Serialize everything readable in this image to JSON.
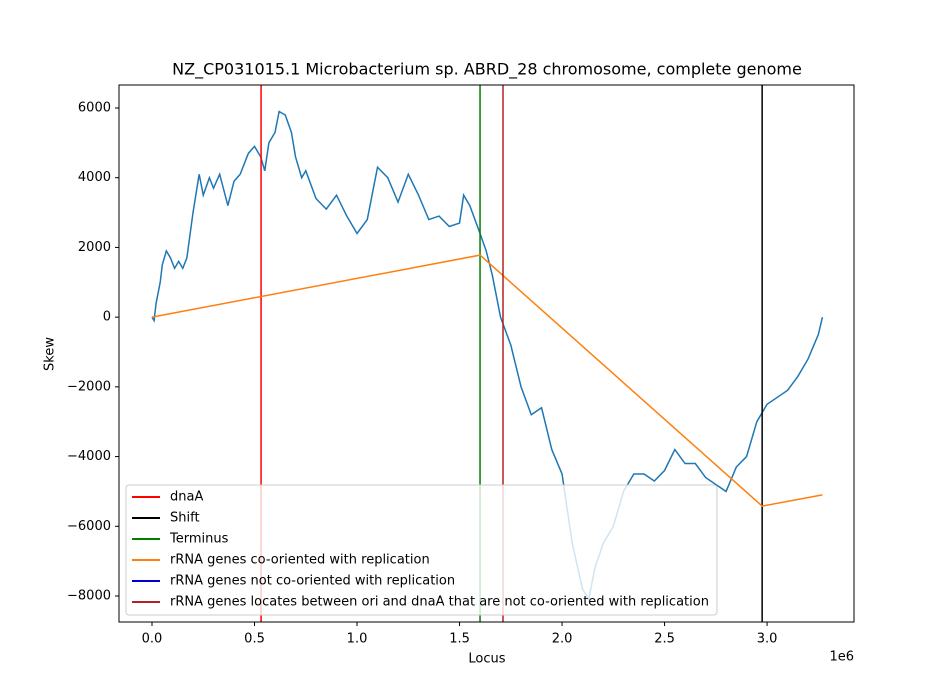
{
  "chart_data": {
    "type": "line",
    "title": "NZ_CP031015.1 Microbacterium sp. ABRD_28 chromosome, complete genome",
    "xlabel": "Locus",
    "ylabel": "Skew",
    "x_offset_label": "1e6",
    "xlim": [
      -161000,
      3424000
    ],
    "ylim": [
      -8746,
      6660
    ],
    "xticks": [
      {
        "value": 0,
        "label": "0.0"
      },
      {
        "value": 500000,
        "label": "0.5"
      },
      {
        "value": 1000000,
        "label": "1.0"
      },
      {
        "value": 1500000,
        "label": "1.5"
      },
      {
        "value": 2000000,
        "label": "2.0"
      },
      {
        "value": 2500000,
        "label": "2.5"
      },
      {
        "value": 3000000,
        "label": "3.0"
      }
    ],
    "yticks": [
      {
        "value": -8000,
        "label": "−8000"
      },
      {
        "value": -6000,
        "label": "−6000"
      },
      {
        "value": -4000,
        "label": "−4000"
      },
      {
        "value": -2000,
        "label": "−2000"
      },
      0,
      2000,
      4000,
      6000
    ],
    "legend": "lower left",
    "color": "#1f77b4",
    "x": [
      0,
      10000,
      20000,
      40000,
      50000,
      70000,
      90000,
      110000,
      130000,
      150000,
      170000,
      200000,
      230000,
      250000,
      280000,
      300000,
      330000,
      370000,
      400000,
      430000,
      470000,
      500000,
      530000,
      550000,
      570000,
      600000,
      620000,
      650000,
      680000,
      700000,
      730000,
      750000,
      800000,
      850000,
      900000,
      950000,
      1000000,
      1050000,
      1100000,
      1150000,
      1200000,
      1250000,
      1300000,
      1350000,
      1400000,
      1450000,
      1500000,
      1520000,
      1550000,
      1600000,
      1630000,
      1660000,
      1700000,
      1750000,
      1800000,
      1850000,
      1900000,
      1950000,
      2000000,
      2050000,
      2100000,
      2130000,
      2160000,
      2200000,
      2250000,
      2300000,
      2350000,
      2400000,
      2450000,
      2500000,
      2550000,
      2600000,
      2650000,
      2700000,
      2750000,
      2800000,
      2850000,
      2900000,
      2950000,
      3000000,
      3050000,
      3100000,
      3150000,
      3200000,
      3250000,
      3270000
    ],
    "values": [
      0,
      -100,
      400,
      1000,
      1500,
      1900,
      1700,
      1400,
      1600,
      1400,
      1700,
      3000,
      4100,
      3500,
      4000,
      3700,
      4100,
      3200,
      3900,
      4100,
      4700,
      4900,
      4600,
      4200,
      5000,
      5300,
      5900,
      5800,
      5300,
      4600,
      4000,
      4200,
      3400,
      3100,
      3500,
      2900,
      2400,
      2800,
      4300,
      4000,
      3300,
      4100,
      3500,
      2800,
      2900,
      2600,
      2700,
      3500,
      3200,
      2400,
      1900,
      1200,
      0,
      -800,
      -2000,
      -2800,
      -2600,
      -3800,
      -4500,
      -6500,
      -7800,
      -8100,
      -7200,
      -6500,
      -6000,
      -5000,
      -4500,
      -4500,
      -4700,
      -4400,
      -3800,
      -4200,
      -4200,
      -4600,
      -4800,
      -5000,
      -4300,
      -4000,
      -3000,
      -2500,
      -2300,
      -2100,
      -1700,
      -1200,
      -500,
      0
    ],
    "series": [
      {
        "name": "dnaA",
        "color": "#ff0000",
        "xlines": [
          532000
        ]
      },
      {
        "name": "Shift",
        "color": "#000000",
        "xlines": [
          2976000
        ]
      },
      {
        "name": "Terminus",
        "color": "#008000",
        "xlines": [
          1600000
        ]
      },
      {
        "name": "rRNA genes co-oriented with replication",
        "color": "#ff7f0e",
        "x": [
          0,
          1600000,
          2976000,
          3270000
        ],
        "values": [
          0,
          1780,
          -5420,
          -5100
        ]
      },
      {
        "name": "rRNA genes not co-oriented with replication",
        "color": "#0000cd",
        "xlines": []
      },
      {
        "name": "rRNA genes locates between ori and dnaA that are not co-oriented with replication",
        "color": "#b22222",
        "xlines": [
          1712000
        ]
      }
    ]
  }
}
